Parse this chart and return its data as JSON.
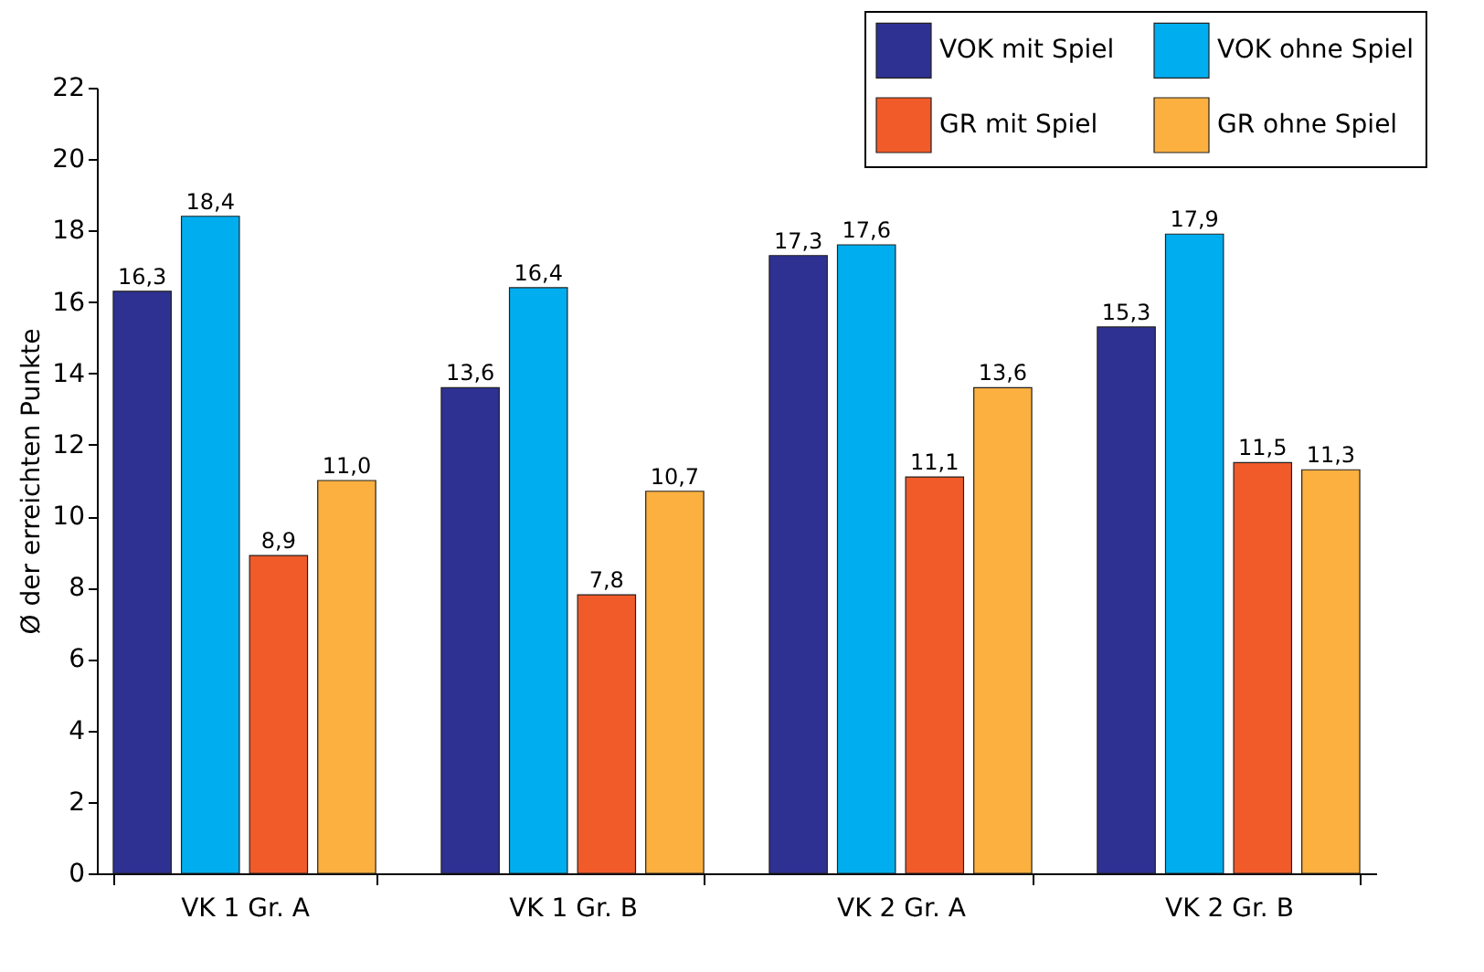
{
  "chart_data": {
    "type": "bar",
    "ylabel": "Ø der erreichten Punkte",
    "categories": [
      "VK 1 Gr. A",
      "VK 1 Gr. B",
      "VK 2 Gr. A",
      "VK 2 Gr. B"
    ],
    "series": [
      {
        "name": "VOK mit Spiel",
        "color": "#2e3192",
        "values": [
          16.3,
          13.6,
          17.3,
          15.3
        ],
        "value_labels": [
          "16,3",
          "13,6",
          "17,3",
          "15,3"
        ]
      },
      {
        "name": "VOK ohne Spiel",
        "color": "#00aeef",
        "values": [
          18.4,
          16.4,
          17.6,
          17.9
        ],
        "value_labels": [
          "18,4",
          "16,4",
          "17,6",
          "17,9"
        ]
      },
      {
        "name": "GR mit Spiel",
        "color": "#f15a29",
        "values": [
          8.9,
          7.8,
          11.1,
          11.5
        ],
        "value_labels": [
          "8,9",
          "7,8",
          "11,1",
          "11,5"
        ]
      },
      {
        "name": "GR ohne Spiel",
        "color": "#fbb040",
        "values": [
          11.0,
          10.7,
          13.6,
          11.3
        ],
        "value_labels": [
          "11,0",
          "10,7",
          "13,6",
          "11,3"
        ]
      }
    ],
    "ylim": [
      0,
      22
    ],
    "yticks": [
      0,
      2,
      4,
      6,
      8,
      10,
      12,
      14,
      16,
      18,
      20,
      22
    ],
    "grid": false,
    "legend": "top right"
  }
}
